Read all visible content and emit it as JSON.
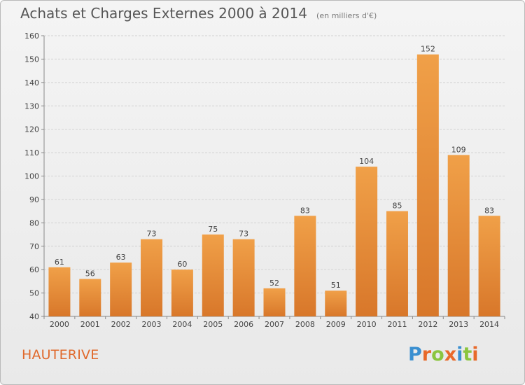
{
  "header": {
    "title": "Achats et Charges Externes 2000 à 2014",
    "subtitle": "(en milliers d'€)"
  },
  "commune": "HAUTERIVE",
  "logo": {
    "text": "Proxiti",
    "colors": [
      "#3a8fd0",
      "#e8692a",
      "#8bc53f",
      "#e8692a",
      "#3a8fd0",
      "#8bc53f",
      "#e8692a"
    ]
  },
  "chart_data": {
    "type": "bar",
    "categories": [
      "2000",
      "2001",
      "2002",
      "2003",
      "2004",
      "2005",
      "2006",
      "2007",
      "2008",
      "2009",
      "2010",
      "2011",
      "2012",
      "2013",
      "2014"
    ],
    "values": [
      61,
      56,
      63,
      73,
      60,
      75,
      73,
      52,
      83,
      51,
      104,
      85,
      152,
      109,
      83
    ],
    "data_labels": [
      "61",
      "56",
      "63",
      "73",
      "60",
      "75",
      "73",
      "52",
      "83",
      "51",
      "104",
      "85",
      "152",
      "109",
      "83"
    ],
    "title": "Achats et Charges Externes 2000 à 2014",
    "xlabel": "",
    "ylabel": "",
    "ylim": [
      40,
      160
    ],
    "yticks": [
      40,
      50,
      60,
      70,
      80,
      90,
      100,
      110,
      120,
      130,
      140,
      150,
      160
    ],
    "grid": true,
    "bar_color": "#f0a048",
    "bar_color_dark": "#d8772a"
  }
}
